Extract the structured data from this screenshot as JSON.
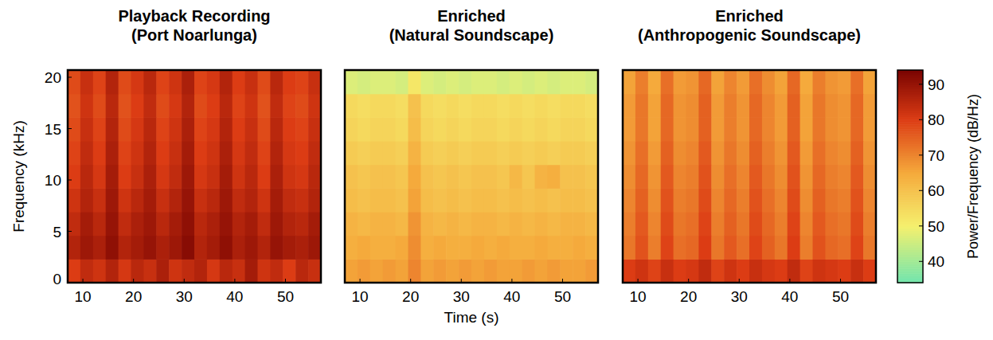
{
  "chart_data": [
    {
      "type": "heatmap",
      "title": "Playback Recording (Port Noarlunga)",
      "y_label": "Frequency (kHz)",
      "xlim": [
        7,
        57
      ],
      "ylim": [
        0,
        20.7
      ],
      "xticks": [
        10,
        20,
        30,
        40,
        50
      ],
      "yticks": [
        0,
        5,
        10,
        15,
        20
      ],
      "x": [
        7,
        9.5,
        12,
        14.5,
        17,
        19.5,
        22,
        24.5,
        27,
        29.5,
        32,
        34.5,
        37,
        39.5,
        42,
        44.5,
        47,
        49.5,
        52,
        54.5,
        57
      ],
      "y": [
        0,
        2.3,
        4.6,
        6.9,
        9.2,
        11.5,
        13.8,
        16.1,
        18.4,
        20.7
      ],
      "z": [
        [
          80,
          84,
          82,
          86,
          81,
          85,
          83,
          87,
          82,
          84,
          86,
          81,
          85,
          83,
          88,
          82,
          84,
          80,
          85,
          83
        ],
        [
          86,
          89,
          87,
          91,
          86,
          88,
          90,
          87,
          89,
          92,
          86,
          88,
          91,
          87,
          89,
          86,
          90,
          88,
          87,
          89
        ],
        [
          84,
          88,
          85,
          90,
          84,
          87,
          89,
          85,
          88,
          91,
          85,
          87,
          90,
          86,
          88,
          84,
          89,
          86,
          85,
          88
        ],
        [
          82,
          86,
          83,
          89,
          82,
          85,
          88,
          83,
          86,
          90,
          83,
          85,
          89,
          84,
          86,
          82,
          88,
          84,
          83,
          86
        ],
        [
          80,
          85,
          81,
          88,
          80,
          83,
          87,
          81,
          84,
          89,
          81,
          83,
          88,
          82,
          85,
          80,
          87,
          82,
          81,
          85
        ],
        [
          79,
          84,
          80,
          87,
          79,
          82,
          86,
          80,
          83,
          88,
          80,
          82,
          87,
          81,
          84,
          79,
          86,
          81,
          80,
          84
        ],
        [
          78,
          83,
          79,
          86,
          78,
          81,
          85,
          79,
          82,
          87,
          79,
          81,
          86,
          80,
          83,
          78,
          85,
          80,
          79,
          83
        ],
        [
          77,
          82,
          78,
          85,
          77,
          80,
          84,
          78,
          81,
          86,
          78,
          80,
          85,
          79,
          82,
          77,
          84,
          79,
          78,
          82
        ],
        [
          78,
          83,
          79,
          86,
          78,
          81,
          85,
          79,
          82,
          87,
          79,
          81,
          86,
          80,
          83,
          78,
          85,
          80,
          79,
          83
        ]
      ]
    },
    {
      "type": "heatmap",
      "title": "Enriched (Natural Soundscape)",
      "x_label": "Time (s)",
      "tick_labels": "x",
      "xlim": [
        7,
        57
      ],
      "ylim": [
        0,
        20.7
      ],
      "xticks": [
        10,
        20,
        30,
        40,
        50
      ],
      "x": [
        7,
        9.5,
        12,
        14.5,
        17,
        19.5,
        22,
        24.5,
        27,
        29.5,
        32,
        34.5,
        37,
        39.5,
        42,
        44.5,
        47,
        49.5,
        52,
        54.5,
        57
      ],
      "y": [
        0,
        2.3,
        4.6,
        6.9,
        9.2,
        11.5,
        13.8,
        16.1,
        18.4,
        20.7
      ],
      "z": [
        [
          66,
          67,
          66,
          67,
          66,
          70,
          66,
          67,
          66,
          67,
          66,
          67,
          66,
          66,
          67,
          66,
          67,
          66,
          66,
          67
        ],
        [
          64,
          65,
          64,
          64,
          65,
          69,
          64,
          65,
          64,
          64,
          65,
          64,
          65,
          64,
          64,
          65,
          64,
          64,
          65,
          64
        ],
        [
          63,
          62,
          63,
          63,
          62,
          68,
          63,
          62,
          63,
          62,
          63,
          63,
          62,
          63,
          62,
          63,
          62,
          63,
          63,
          62
        ],
        [
          61,
          60,
          61,
          61,
          60,
          66,
          61,
          60,
          61,
          60,
          61,
          61,
          60,
          61,
          60,
          61,
          60,
          61,
          61,
          60
        ],
        [
          60,
          59,
          60,
          60,
          59,
          65,
          60,
          59,
          60,
          59,
          60,
          60,
          59,
          62,
          59,
          63,
          64,
          60,
          60,
          59
        ],
        [
          58,
          57,
          58,
          58,
          57,
          63,
          58,
          57,
          58,
          57,
          58,
          58,
          57,
          58,
          57,
          58,
          57,
          58,
          58,
          57
        ],
        [
          56,
          55,
          56,
          56,
          55,
          61,
          56,
          55,
          56,
          55,
          56,
          56,
          55,
          56,
          55,
          56,
          55,
          56,
          56,
          55
        ],
        [
          55,
          54,
          55,
          55,
          54,
          60,
          55,
          54,
          55,
          54,
          55,
          55,
          54,
          55,
          54,
          55,
          54,
          55,
          55,
          54
        ],
        [
          47,
          46,
          47,
          47,
          46,
          52,
          47,
          46,
          47,
          46,
          47,
          47,
          46,
          47,
          46,
          47,
          46,
          47,
          47,
          46
        ]
      ]
    },
    {
      "type": "heatmap",
      "title": "Enriched (Anthropogenic Soundscape)",
      "tick_labels": "x",
      "xlim": [
        7,
        57
      ],
      "ylim": [
        0,
        20.7
      ],
      "xticks": [
        10,
        20,
        30,
        40,
        50
      ],
      "x": [
        7,
        9.5,
        12,
        14.5,
        17,
        19.5,
        22,
        24.5,
        27,
        29.5,
        32,
        34.5,
        37,
        39.5,
        42,
        44.5,
        47,
        49.5,
        52,
        54.5,
        57
      ],
      "y": [
        0,
        2.3,
        4.6,
        6.9,
        9.2,
        11.5,
        13.8,
        16.1,
        18.4,
        20.7
      ],
      "z": [
        [
          80,
          82,
          79,
          83,
          80,
          81,
          84,
          79,
          82,
          80,
          83,
          81,
          80,
          84,
          79,
          82,
          81,
          80,
          83,
          80
        ],
        [
          72,
          77,
          71,
          79,
          73,
          74,
          80,
          72,
          76,
          73,
          79,
          75,
          72,
          80,
          71,
          77,
          74,
          73,
          79,
          72
        ],
        [
          71,
          76,
          70,
          78,
          72,
          73,
          79,
          71,
          75,
          72,
          78,
          74,
          71,
          79,
          70,
          76,
          73,
          72,
          78,
          71
        ],
        [
          70,
          75,
          69,
          77,
          71,
          72,
          78,
          70,
          74,
          71,
          77,
          73,
          70,
          78,
          69,
          75,
          72,
          71,
          77,
          70
        ],
        [
          69,
          74,
          68,
          76,
          70,
          71,
          77,
          69,
          73,
          70,
          76,
          72,
          69,
          77,
          68,
          74,
          71,
          70,
          76,
          69
        ],
        [
          68,
          73,
          67,
          75,
          69,
          70,
          76,
          68,
          72,
          69,
          75,
          71,
          68,
          76,
          67,
          73,
          70,
          69,
          75,
          68
        ],
        [
          67,
          72,
          66,
          74,
          68,
          69,
          75,
          67,
          71,
          68,
          74,
          70,
          67,
          75,
          66,
          72,
          69,
          68,
          74,
          67
        ],
        [
          67,
          72,
          66,
          74,
          68,
          69,
          75,
          67,
          71,
          68,
          74,
          70,
          67,
          75,
          66,
          72,
          69,
          68,
          74,
          67
        ],
        [
          66,
          71,
          65,
          73,
          67,
          68,
          74,
          66,
          70,
          67,
          73,
          69,
          66,
          74,
          65,
          71,
          68,
          67,
          73,
          66
        ]
      ],
      "zlim": [
        34,
        94
      ],
      "zticks": [
        40,
        50,
        60,
        70,
        80,
        90
      ],
      "zlabel": "Power/Frequency (dB/Hz)"
    }
  ]
}
